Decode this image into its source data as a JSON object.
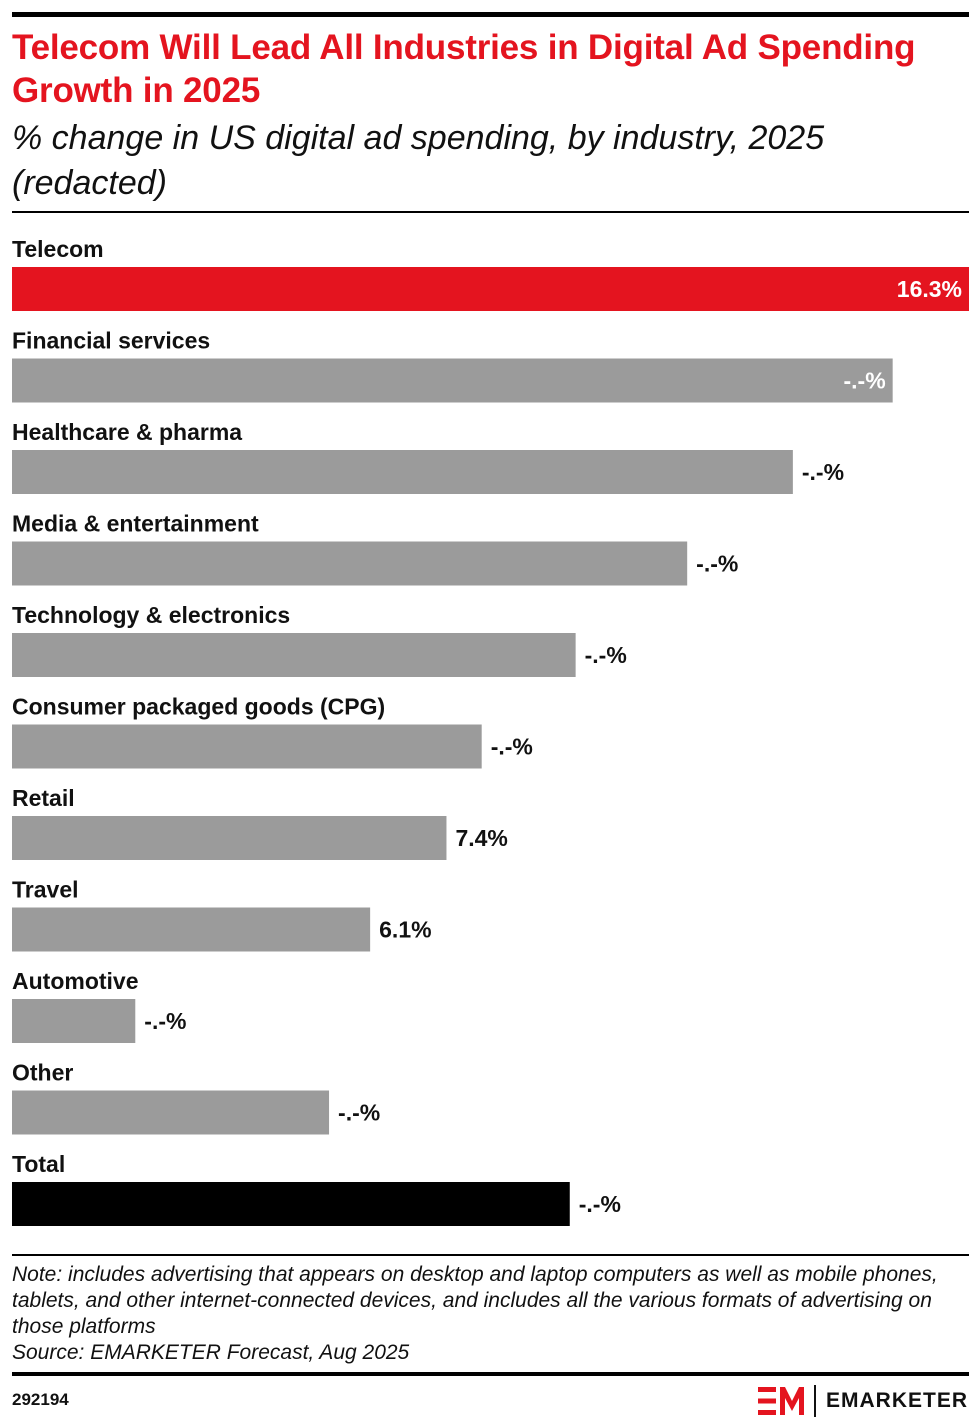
{
  "header": {
    "title": "Telecom Will Lead All Industries in Digital Ad Spending Growth in 2025",
    "subtitle": "% change in US digital ad spending, by industry, 2025 (redacted)"
  },
  "chart_data": {
    "type": "bar",
    "orientation": "horizontal",
    "categories": [
      "Telecom",
      "Financial services",
      "Healthcare & pharma",
      "Media & entertainment",
      "Technology & electronics",
      "Consumer packaged goods (CPG)",
      "Retail",
      "Travel",
      "Automotive",
      "Other",
      "Total"
    ],
    "values": [
      16.3,
      15.0,
      13.3,
      11.5,
      9.6,
      8.0,
      7.4,
      6.1,
      2.1,
      5.4,
      9.5
    ],
    "value_labels": [
      "16.3%",
      "-.-%",
      "-.-%",
      "-.-%",
      "-.-%",
      "-.-%",
      "7.4%",
      "6.1%",
      "-.-%",
      "-.-%",
      "-.-%"
    ],
    "bar_colors": [
      "#e4141f",
      "#9b9b9b",
      "#9b9b9b",
      "#9b9b9b",
      "#9b9b9b",
      "#9b9b9b",
      "#9b9b9b",
      "#9b9b9b",
      "#9b9b9b",
      "#9b9b9b",
      "#000000"
    ],
    "label_inside": [
      true,
      true,
      false,
      false,
      false,
      false,
      false,
      false,
      false,
      false,
      false
    ],
    "xlim": [
      0,
      16.3
    ],
    "grid": false,
    "legend": "none"
  },
  "footer": {
    "note": "Note: includes advertising that appears on desktop and laptop computers as well as mobile phones, tablets, and other internet-connected devices, and includes all the various formats of advertising on those platforms",
    "source": "Source: EMARKETER Forecast, Aug 2025",
    "chart_id": "292194",
    "brand": "EMARKETER",
    "logo_text": "EM"
  },
  "colors": {
    "accent": "#e4141f",
    "bar": "#9b9b9b",
    "total": "#000000"
  }
}
